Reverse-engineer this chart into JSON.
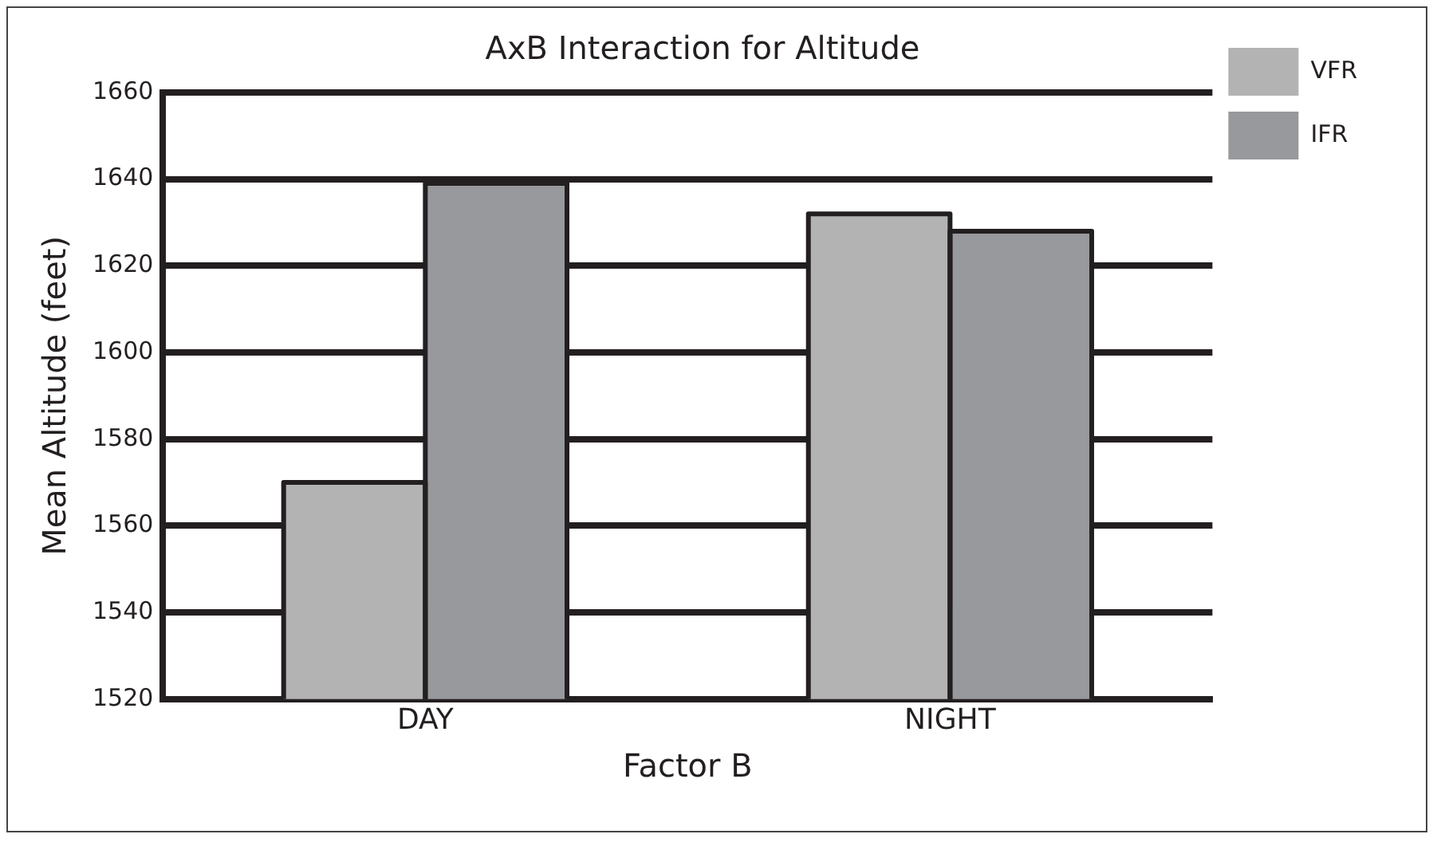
{
  "chart_data": {
    "type": "bar",
    "title": "AxB Interaction for Altitude",
    "xlabel": "Factor B",
    "ylabel": "Mean Altitude (feet)",
    "categories": [
      "DAY",
      "NIGHT"
    ],
    "series": [
      {
        "name": "VFR",
        "color": "#b3b3b3",
        "values": [
          1570,
          1632
        ]
      },
      {
        "name": "IFR",
        "color": "#98999c",
        "values": [
          1639,
          1628
        ]
      }
    ],
    "ylim": [
      1520,
      1660
    ],
    "yticks": [
      1520,
      1540,
      1560,
      1580,
      1600,
      1620,
      1640,
      1660
    ],
    "grid": "y",
    "legend": "right"
  }
}
